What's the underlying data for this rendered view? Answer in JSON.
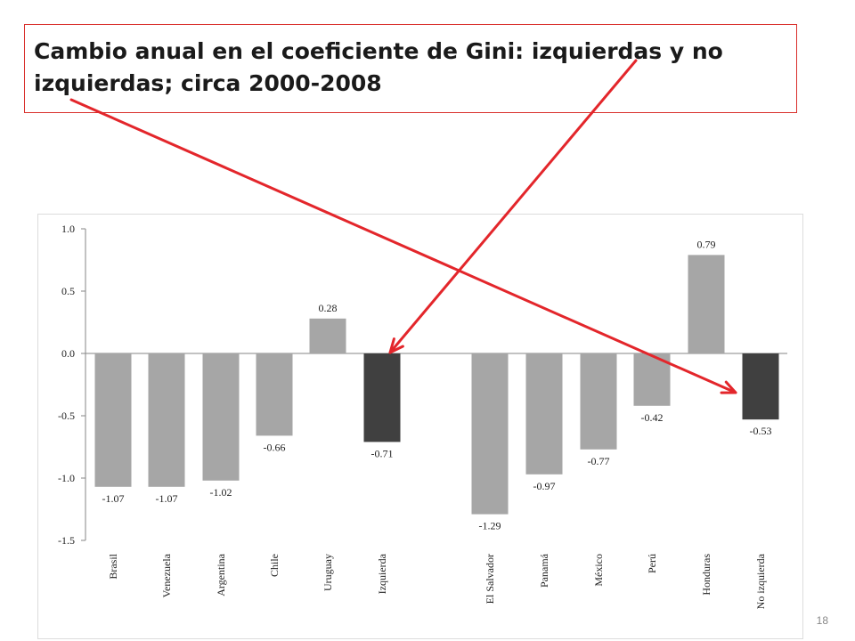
{
  "slide": {
    "page_number": "18"
  },
  "chart_data": {
    "type": "bar",
    "title": "Cambio anual en el coeficiente de Gini: izquierdas y no izquierdas; circa 2000-2008",
    "categories": [
      "Brasil",
      "Venezuela",
      "Argentina",
      "Chile",
      "Uruguay",
      "Izquierda",
      "El Salvador",
      "Panamá",
      "México",
      "Perú",
      "Honduras",
      "No izquierda"
    ],
    "values": [
      -1.07,
      -1.07,
      -1.02,
      -0.66,
      0.28,
      -0.71,
      -1.29,
      -0.97,
      -0.77,
      -0.42,
      0.79,
      -0.53
    ],
    "value_labels": [
      "-1.07",
      "-1.07",
      "-1.02",
      "-0.66",
      "0.28",
      "-0.71",
      "-1.29",
      "-0.97",
      "-0.77",
      "-0.42",
      "0.79",
      "-0.53"
    ],
    "highlighted": [
      "Izquierda",
      "No izquierda"
    ],
    "ylim": [
      -1.5,
      1.0
    ],
    "yticks": [
      "1.0",
      "0.5",
      "0.0",
      "-0.5",
      "-1.0",
      "-1.5"
    ],
    "xlabel": "",
    "ylabel": "",
    "grid": false,
    "colors": {
      "bar": "#a6a6a6",
      "highlight": "#404040",
      "arrow": "#e3262b",
      "axis": "#868686"
    }
  }
}
